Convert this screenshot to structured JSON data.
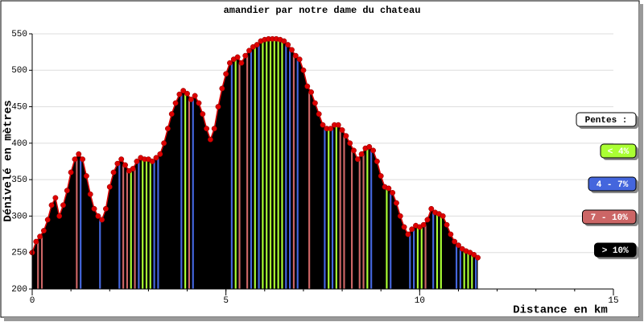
{
  "chart_data": {
    "type": "area",
    "title": "amandier par notre dame du chateau",
    "xlabel": "Distance en km",
    "ylabel": "Dénivelé en mètres",
    "x": [
      0,
      0.1,
      0.2,
      0.3,
      0.4,
      0.5,
      0.6,
      0.7,
      0.8,
      0.9,
      1.0,
      1.1,
      1.2,
      1.3,
      1.4,
      1.5,
      1.6,
      1.7,
      1.8,
      1.9,
      2.0,
      2.1,
      2.2,
      2.3,
      2.4,
      2.5,
      2.6,
      2.7,
      2.8,
      2.9,
      3.0,
      3.1,
      3.2,
      3.3,
      3.4,
      3.5,
      3.6,
      3.7,
      3.8,
      3.9,
      4.0,
      4.1,
      4.2,
      4.3,
      4.4,
      4.5,
      4.6,
      4.7,
      4.8,
      4.9,
      5.0,
      5.1,
      5.2,
      5.3,
      5.4,
      5.5,
      5.6,
      5.7,
      5.8,
      5.9,
      6.0,
      6.1,
      6.2,
      6.3,
      6.4,
      6.5,
      6.6,
      6.7,
      6.8,
      6.9,
      7.0,
      7.1,
      7.2,
      7.3,
      7.4,
      7.5,
      7.6,
      7.7,
      7.8,
      7.9,
      8.0,
      8.1,
      8.2,
      8.3,
      8.4,
      8.5,
      8.6,
      8.7,
      8.8,
      8.9,
      9.0,
      9.1,
      9.2,
      9.3,
      9.4,
      9.5,
      9.6,
      9.7,
      9.8,
      9.9,
      10.0,
      10.1,
      10.2,
      10.3,
      10.4,
      10.5,
      10.6,
      10.7,
      10.8,
      10.9,
      11.0,
      11.1,
      11.2,
      11.3,
      11.4,
      11.5
    ],
    "values": [
      250,
      265,
      272,
      280,
      295,
      315,
      325,
      300,
      315,
      335,
      360,
      378,
      385,
      378,
      355,
      330,
      310,
      300,
      295,
      310,
      340,
      360,
      372,
      378,
      370,
      362,
      365,
      375,
      380,
      378,
      378,
      375,
      380,
      385,
      400,
      420,
      440,
      455,
      467,
      472,
      468,
      460,
      465,
      455,
      440,
      420,
      405,
      420,
      450,
      475,
      495,
      510,
      515,
      518,
      510,
      520,
      527,
      532,
      535,
      540,
      542,
      543,
      543,
      543,
      542,
      540,
      535,
      528,
      520,
      515,
      500,
      478,
      470,
      455,
      440,
      425,
      420,
      420,
      425,
      425,
      418,
      410,
      400,
      390,
      378,
      385,
      393,
      395,
      390,
      375,
      355,
      340,
      338,
      332,
      318,
      300,
      285,
      275,
      282,
      287,
      285,
      288,
      295,
      310,
      305,
      303,
      300,
      288,
      275,
      265,
      260,
      255,
      252,
      250,
      247,
      243
    ],
    "xlim": [
      0,
      15
    ],
    "xticks": [
      0,
      5,
      10,
      15
    ],
    "ylim": [
      200,
      550
    ],
    "yticks": [
      200,
      250,
      300,
      350,
      400,
      450,
      500,
      550
    ],
    "grid": true,
    "line_color": "#dd0000",
    "fill_color": "#000000",
    "legend_title": "Pentes :",
    "slope_classes": [
      {
        "label": "< 4%",
        "max": 4,
        "color": "#aaff33"
      },
      {
        "label": "4 - 7%",
        "max": 7,
        "color": "#4466dd"
      },
      {
        "label": "7 - 10%",
        "max": 10,
        "color": "#cc6666"
      },
      {
        "label": "> 10%",
        "color": "#000000"
      }
    ]
  }
}
